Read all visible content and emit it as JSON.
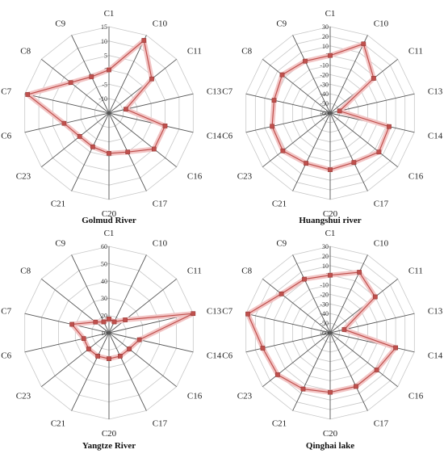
{
  "colors": {
    "series": "#c0504d",
    "band": "#f2c4c4",
    "spoke": "#555555",
    "ring": "#c8c8c8"
  },
  "chart_data": [
    {
      "type": "radar",
      "title": "Golmud River",
      "categories": [
        "C1",
        "C10",
        "C11",
        "C13",
        "C14",
        "C16",
        "C17",
        "C20",
        "C21",
        "C23",
        "C6",
        "C7",
        "C8",
        "C9"
      ],
      "ticks": [
        "-10",
        "-5",
        "0",
        "5",
        "10",
        "15"
      ],
      "rlim": [
        -15,
        15
      ],
      "series": [
        {
          "values": [
            0,
            13,
            4,
            -9,
            5,
            5,
            0,
            -1,
            -2,
            -2,
            1,
            14,
            2,
            -1
          ]
        }
      ]
    },
    {
      "type": "radar",
      "title": "Huangshui river",
      "categories": [
        "C1",
        "C10",
        "C11",
        "C13",
        "C14",
        "C16",
        "C17",
        "C20",
        "C21",
        "C23",
        "C6",
        "C7",
        "C8",
        "C9"
      ],
      "ticks": [
        "-60",
        "-50",
        "-40",
        "-30",
        "-20",
        "-10",
        "0",
        "10",
        "20",
        "30"
      ],
      "rlim": [
        -60,
        30
      ],
      "series": [
        {
          "values": [
            0,
            20,
            -2,
            -50,
            3,
            5,
            -3,
            -1,
            -2,
            3,
            2,
            0,
            4,
            0
          ]
        }
      ]
    },
    {
      "type": "radar",
      "title": "Yangtze River",
      "categories": [
        "C1",
        "C10",
        "C11",
        "C13",
        "C14",
        "C16",
        "C17",
        "C20",
        "C21",
        "C23",
        "C6",
        "C7",
        "C8",
        "C9"
      ],
      "ticks": [
        "10",
        "20",
        "30",
        "40",
        "50",
        "60"
      ],
      "rlim": [
        10,
        60
      ],
      "series": [
        {
          "values": [
            18,
            17,
            22,
            60,
            28,
            25,
            25,
            25,
            25,
            25,
            25,
            32,
            20,
            17
          ]
        }
      ]
    },
    {
      "type": "radar",
      "title": "Qinghai lake",
      "categories": [
        "C1",
        "C10",
        "C11",
        "C13",
        "C14",
        "C16",
        "C17",
        "C20",
        "C21",
        "C23",
        "C6",
        "C7",
        "C8",
        "C9"
      ],
      "ticks": [
        "-60",
        "-50",
        "-40",
        "-30",
        "-20",
        "-10",
        "0",
        "10",
        "20",
        "30"
      ],
      "rlim": [
        -60,
        30
      ],
      "series": [
        {
          "values": [
            0,
            10,
            0,
            -45,
            10,
            2,
            2,
            2,
            5,
            10,
            12,
            28,
            5,
            2
          ]
        }
      ]
    }
  ]
}
